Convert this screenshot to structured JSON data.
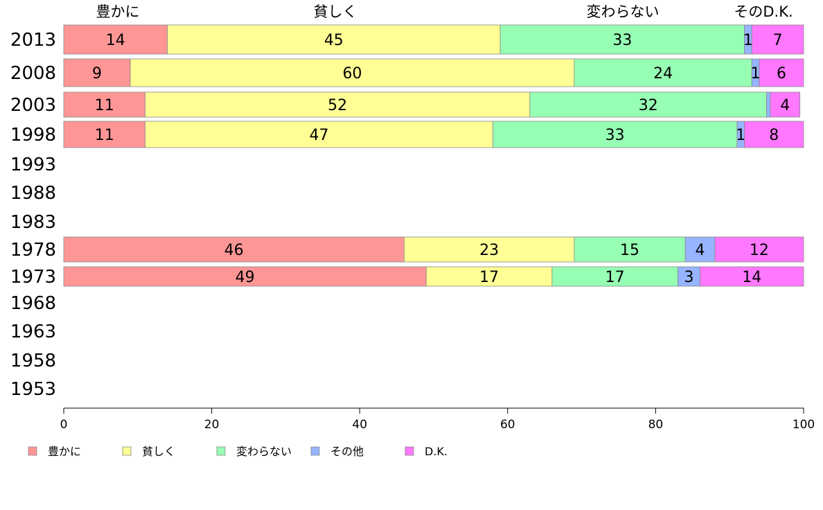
{
  "chart_data": {
    "type": "bar",
    "orientation": "horizontal",
    "stacked": true,
    "categories": [
      "2013",
      "2008",
      "2003",
      "1998",
      "1993",
      "1988",
      "1983",
      "1978",
      "1973",
      "1968",
      "1963",
      "1958",
      "1953"
    ],
    "series": [
      {
        "name": "豊かに",
        "color": "#ff9696",
        "values": [
          14,
          9,
          11,
          11,
          null,
          null,
          null,
          46,
          49,
          null,
          null,
          null,
          null
        ]
      },
      {
        "name": "貧しく",
        "color": "#ffff96",
        "values": [
          45,
          60,
          52,
          47,
          null,
          null,
          null,
          23,
          17,
          null,
          null,
          null,
          null
        ]
      },
      {
        "name": "変わらない",
        "color": "#96ffb4",
        "values": [
          33,
          24,
          32,
          33,
          null,
          null,
          null,
          15,
          17,
          null,
          null,
          null,
          null
        ]
      },
      {
        "name": "その他",
        "color": "#96b4ff",
        "values": [
          1,
          1,
          0.5,
          1,
          null,
          null,
          null,
          4,
          3,
          null,
          null,
          null,
          null
        ]
      },
      {
        "name": "D.K.",
        "color": "#ff78ff",
        "values": [
          7,
          6,
          4,
          8,
          null,
          null,
          null,
          12,
          14,
          null,
          null,
          null,
          null
        ]
      }
    ],
    "segment_labels": [
      [
        "14",
        "45",
        "33",
        "1",
        "7"
      ],
      [
        "9",
        "60",
        "24",
        "1",
        "6"
      ],
      [
        "11",
        "52",
        "32",
        "",
        "4"
      ],
      [
        "11",
        "47",
        "33",
        "1",
        "8"
      ],
      [],
      [],
      [],
      [
        "46",
        "23",
        "15",
        "4",
        "12"
      ],
      [
        "49",
        "17",
        "17",
        "3",
        "14"
      ],
      [],
      [],
      [],
      []
    ],
    "top_labels": [
      "豊かに",
      "貧しく",
      "変わらない",
      "そのD.K."
    ],
    "xticks": [
      0,
      20,
      40,
      60,
      80,
      100
    ],
    "xlim": [
      0,
      100
    ],
    "grid": false,
    "legend_position": "bottom"
  }
}
